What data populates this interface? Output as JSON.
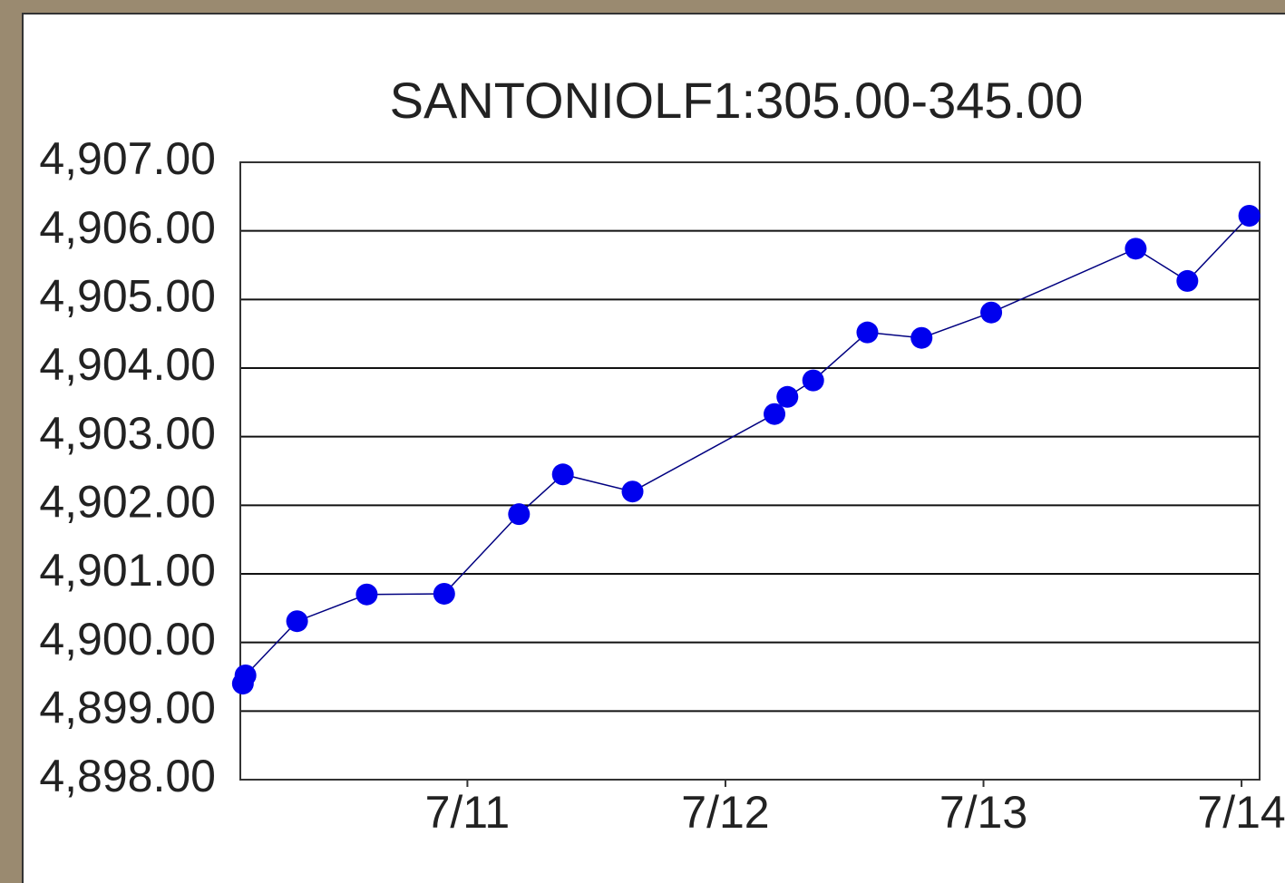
{
  "chart_data": {
    "type": "line",
    "title": "SANTONIOLF1:305.00-345.00",
    "x": [
      10.13,
      10.14,
      10.34,
      10.61,
      10.91,
      11.2,
      11.37,
      11.64,
      12.19,
      12.24,
      12.34,
      12.55,
      12.76,
      13.03,
      13.59,
      13.79,
      14.03
    ],
    "series": [
      {
        "name": "SANTONIOLF1",
        "color": "#0000ee",
        "values": [
          4899.4,
          4899.52,
          4900.31,
          4900.7,
          4900.71,
          4901.87,
          4902.45,
          4902.2,
          4903.33,
          4903.58,
          4903.82,
          4904.52,
          4904.44,
          4904.81,
          4905.74,
          4905.27,
          4906.22
        ]
      }
    ],
    "xlim": [
      10.12,
      14.07
    ],
    "xticks": [
      {
        "value": 11,
        "label": "7/11"
      },
      {
        "value": 12,
        "label": "7/12"
      },
      {
        "value": 13,
        "label": "7/13"
      },
      {
        "value": 14,
        "label": "7/14"
      }
    ],
    "ylim": [
      4898,
      4907
    ],
    "yticks": [
      {
        "value": 4898,
        "label": "4,898.00"
      },
      {
        "value": 4899,
        "label": "4,899.00"
      },
      {
        "value": 4900,
        "label": "4,900.00"
      },
      {
        "value": 4901,
        "label": "4,901.00"
      },
      {
        "value": 4902,
        "label": "4,902.00"
      },
      {
        "value": 4903,
        "label": "4,903.00"
      },
      {
        "value": 4904,
        "label": "4,904.00"
      },
      {
        "value": 4905,
        "label": "4,905.00"
      },
      {
        "value": 4906,
        "label": "4,906.00"
      },
      {
        "value": 4907,
        "label": "4,907.00"
      }
    ],
    "grid": true
  }
}
